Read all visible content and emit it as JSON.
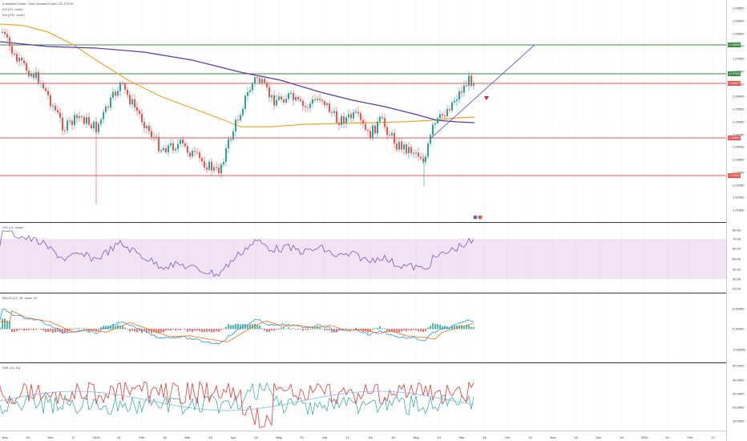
{
  "header": {
    "symbol": "Australian Dollar / New Zealand Dollar, 1D, FXCM",
    "ma1": "MA (20, close)",
    "ma2": "MA (200, close)"
  },
  "indicators": {
    "rsi": "RSI (14, close)",
    "macd": "MACD (12, 26, close, 9)",
    "dmi": "DMI (14, 14)"
  },
  "price_axis": {
    "ticks": [
      "1.09500",
      "1.09000",
      "1.08500",
      "1.08000",
      "1.07500",
      "1.07000",
      "1.06500",
      "1.06000",
      "1.05500",
      "1.05000",
      "1.04500",
      "1.04000",
      "1.03500",
      "1.03000",
      "1.02500",
      "1.02000",
      "1.01500"
    ],
    "levels": [
      {
        "label": "1.08500",
        "color": "#388e3c"
      },
      {
        "label": "1.07000",
        "color": "#388e3c"
      },
      {
        "label": "1.06627",
        "color": "#ef5350"
      },
      {
        "label": "1.04500",
        "color": "#ef5350"
      },
      {
        "label": "1.03000",
        "color": "#ef5350"
      }
    ]
  },
  "rsi_axis": [
    "80.00",
    "70.00",
    "60.00",
    "50.00",
    "40.00",
    "30.00",
    "20.00"
  ],
  "macd_axis": [
    "0.00500",
    "0.00000",
    "-0.00500"
  ],
  "dmi_axis": [
    "50.0000",
    "40.0000",
    "30.0000",
    "20.0000",
    "10.0000"
  ],
  "time_axis": [
    "Nov",
    "19",
    "Dec",
    "17",
    "2019",
    "21",
    "Feb",
    "18",
    "Mar",
    "18",
    "Apr",
    "15",
    "May",
    "20",
    "Jun",
    "17",
    "Jul",
    "15",
    "Aug",
    "19",
    "Sep",
    "16",
    "Oct",
    "14",
    "Nov",
    "18",
    "Dec",
    "16",
    "2020",
    "20",
    "Feb",
    "17"
  ],
  "colors": {
    "bull": "#26a69a",
    "bear": "#ef5350",
    "ma20": "#5e35b1",
    "ma200": "#f5a623",
    "trendline": "#5b63d6",
    "rsi_band": "#e1bee7",
    "macd_line": "#2196f3",
    "signal_line": "#ff6d00"
  }
}
